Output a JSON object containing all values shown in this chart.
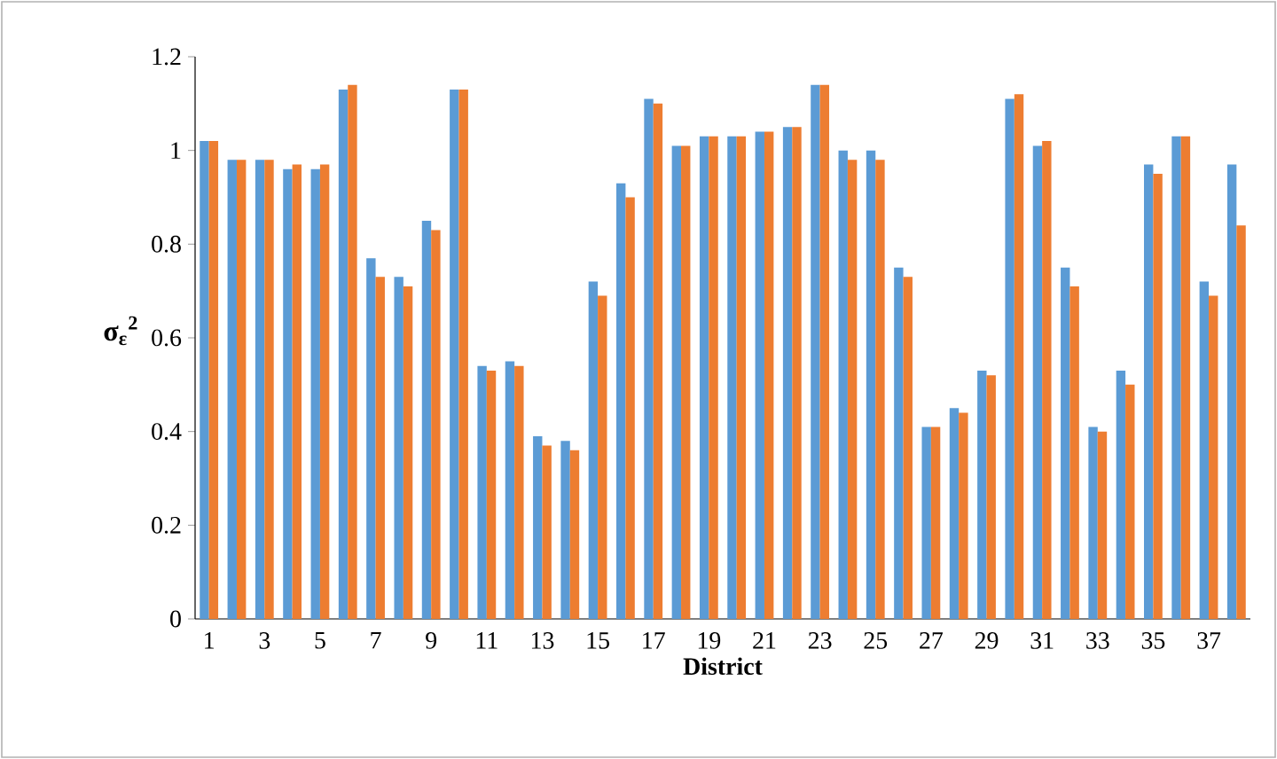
{
  "chart_data": {
    "type": "bar",
    "xlabel": "District",
    "ylabel": "σ$_{ε}$$^{2}$",
    "categories": [
      "1",
      null,
      "3",
      null,
      "5",
      null,
      "7",
      null,
      "9",
      null,
      "11",
      null,
      "13",
      null,
      "15",
      null,
      "17",
      null,
      "19",
      null,
      "21",
      null,
      "23",
      null,
      "25",
      null,
      "27",
      null,
      "29",
      null,
      "31",
      null,
      "33",
      null,
      "35",
      null,
      "37",
      null
    ],
    "series": [
      {
        "color": "#5b9bd5",
        "values": [
          1.02,
          0.98,
          0.98,
          0.96,
          0.96,
          1.13,
          0.77,
          0.73,
          0.85,
          1.13,
          0.54,
          0.55,
          0.39,
          0.38,
          0.72,
          0.93,
          1.11,
          1.01,
          1.03,
          1.03,
          1.04,
          1.05,
          1.14,
          1.0,
          1.0,
          0.75,
          0.41,
          0.45,
          0.53,
          1.11,
          1.01,
          0.75,
          0.41,
          0.53,
          0.97,
          1.03,
          0.72,
          0.97
        ]
      },
      {
        "color": "#ed7d31",
        "values": [
          1.02,
          0.98,
          0.98,
          0.97,
          0.97,
          1.14,
          0.73,
          0.71,
          0.83,
          1.13,
          0.53,
          0.54,
          0.37,
          0.36,
          0.69,
          0.9,
          1.1,
          1.01,
          1.03,
          1.03,
          1.04,
          1.05,
          1.14,
          0.98,
          0.98,
          0.73,
          0.41,
          0.44,
          0.52,
          1.12,
          1.02,
          0.71,
          0.4,
          0.5,
          0.95,
          1.03,
          0.69,
          0.84
        ]
      }
    ],
    "ylim": [
      0,
      1.2
    ],
    "yticks": [
      0,
      0.2,
      0.4,
      0.6,
      0.8,
      1,
      1.2
    ]
  }
}
